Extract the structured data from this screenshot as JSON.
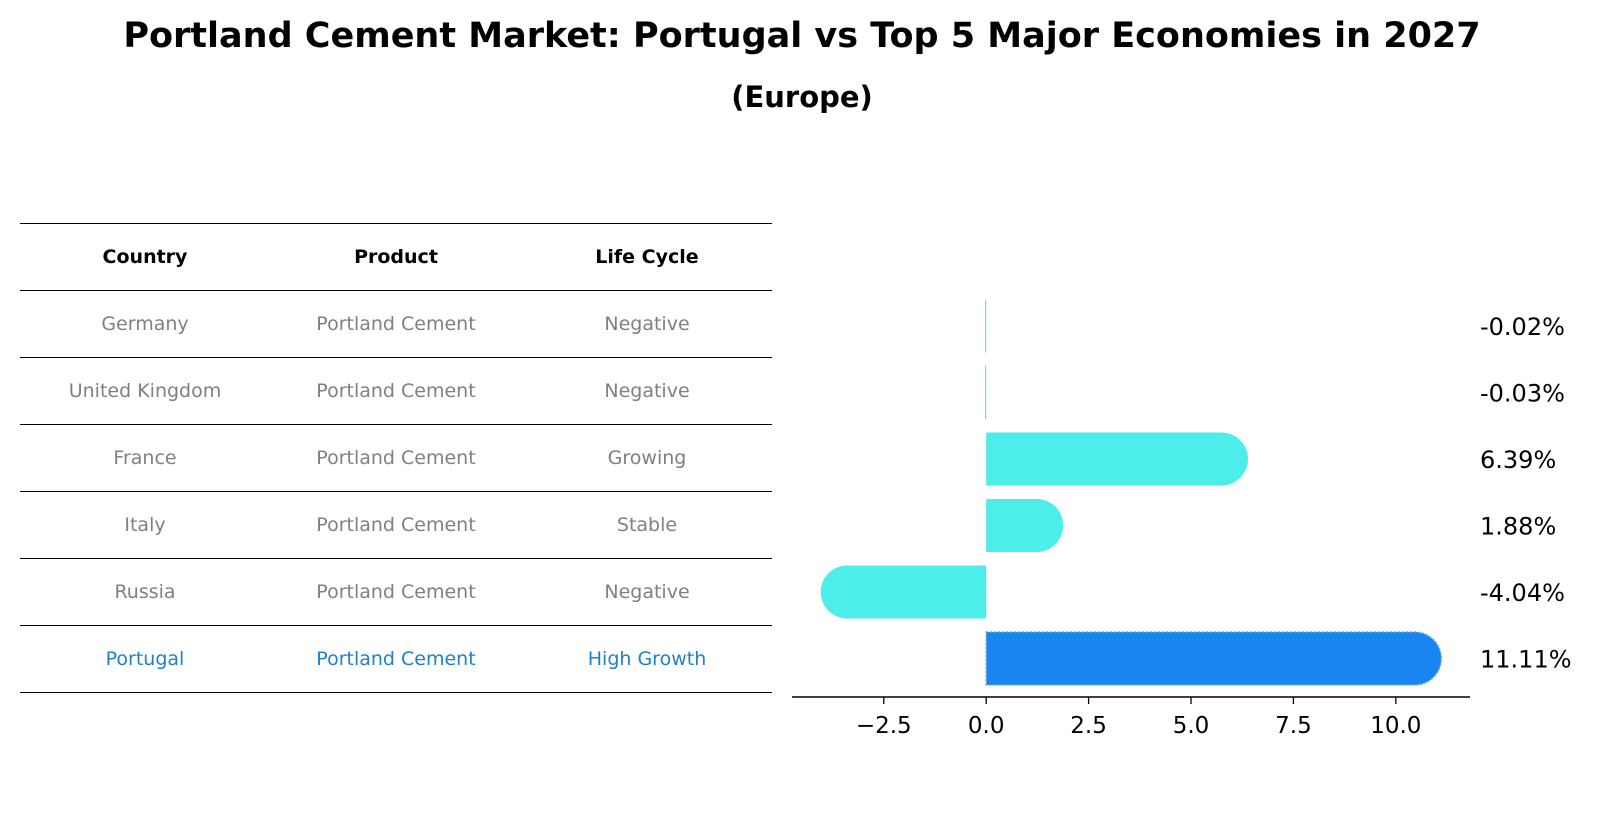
{
  "title": "Portland Cement Market: Portugal vs Top 5 Major Economies in 2027",
  "subtitle": "(Europe)",
  "table": {
    "headers": [
      "Country",
      "Product",
      "Life Cycle"
    ],
    "rows": [
      [
        "Germany",
        "Portland Cement",
        "Negative"
      ],
      [
        "United Kingdom",
        "Portland Cement",
        "Negative"
      ],
      [
        "France",
        "Portland Cement",
        "Growing"
      ],
      [
        "Italy",
        "Portland Cement",
        "Stable"
      ],
      [
        "Russia",
        "Portland Cement",
        "Negative"
      ],
      [
        "Portugal",
        "Portland Cement",
        "High Growth"
      ]
    ]
  },
  "chart_data": {
    "type": "bar",
    "orientation": "horizontal",
    "categories": [
      "Germany",
      "United Kingdom",
      "France",
      "Italy",
      "Russia",
      "Portugal"
    ],
    "values": [
      -0.02,
      -0.03,
      6.39,
      1.88,
      -4.04,
      11.11
    ],
    "value_labels": [
      "-0.02%",
      "-0.03%",
      "6.39%",
      "1.88%",
      "-4.04%",
      "11.11%"
    ],
    "x_ticks": [
      -2.5,
      0.0,
      2.5,
      5.0,
      7.5,
      10.0
    ],
    "x_tick_labels": [
      "−2.5",
      "0.0",
      "2.5",
      "5.0",
      "7.5",
      "10.0"
    ],
    "xlim": [
      -4.74,
      11.81
    ],
    "highlight": "Portugal",
    "colors": {
      "bar": "#4deeea",
      "highlight": "#1985f0",
      "text": "#000000"
    }
  }
}
